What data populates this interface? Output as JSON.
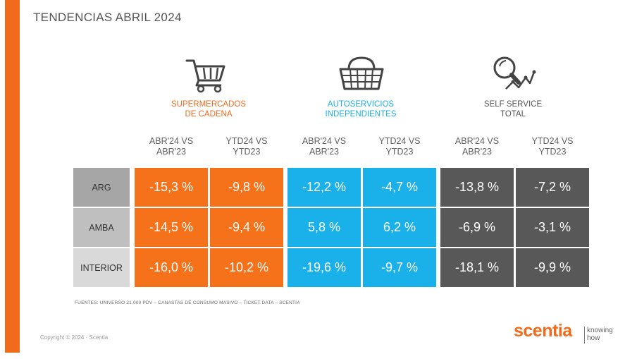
{
  "title": "TENDENCIAS ABRIL 2024",
  "segments": [
    {
      "line1": "SUPERMERCADOS",
      "line2": "DE CADENA",
      "color": "#f26b1d",
      "icon": "shopping-cart-icon"
    },
    {
      "line1": "AUTOSERVICIOS",
      "line2": "INDEPENDIENTES",
      "color": "#1ab0ea",
      "icon": "shopping-basket-icon"
    },
    {
      "line1": "SELF SERVICE",
      "line2": "TOTAL",
      "color": "#555555",
      "icon": "magnifier-trend-icon"
    }
  ],
  "column_headers": [
    {
      "line1": "ABR'24 VS",
      "line2": "ABR'23"
    },
    {
      "line1": "YTD24 VS",
      "line2": "YTD23"
    },
    {
      "line1": "ABR'24 VS",
      "line2": "ABR'23"
    },
    {
      "line1": "YTD24 VS",
      "line2": "YTD23"
    },
    {
      "line1": "ABR'24 VS",
      "line2": "ABR'23"
    },
    {
      "line1": "YTD24 VS",
      "line2": "YTD23"
    }
  ],
  "rows": [
    {
      "label": "ARG",
      "values": [
        "-15,3 %",
        "-9,8 %",
        "-12,2 %",
        "-4,7 %",
        "-13,8 %",
        "-7,2 %"
      ]
    },
    {
      "label": "AMBA",
      "values": [
        "-14,5 %",
        "-9,4 %",
        "5,8 %",
        "6,2 %",
        "-6,9 %",
        "-3,1 %"
      ]
    },
    {
      "label": "INTERIOR",
      "values": [
        "-16,0 %",
        "-10,2 %",
        "-19,6 %",
        "-9,7 %",
        "-18,1 %",
        "-9,9 %"
      ]
    }
  ],
  "row_label_colors": [
    "#a6a6a6",
    "#bfbfbf",
    "#d9d9d9"
  ],
  "source": "FUENTES: UNIVERSO 21.000 PDV – CANASTAS DE CONSUMO MASIVO – TICKET DATA  – SCENTIA",
  "copyright": "Copyright © 2024 · Scentia",
  "logo": {
    "word": "scentia",
    "tag_line1": "knowing",
    "tag_line2": "how"
  }
}
